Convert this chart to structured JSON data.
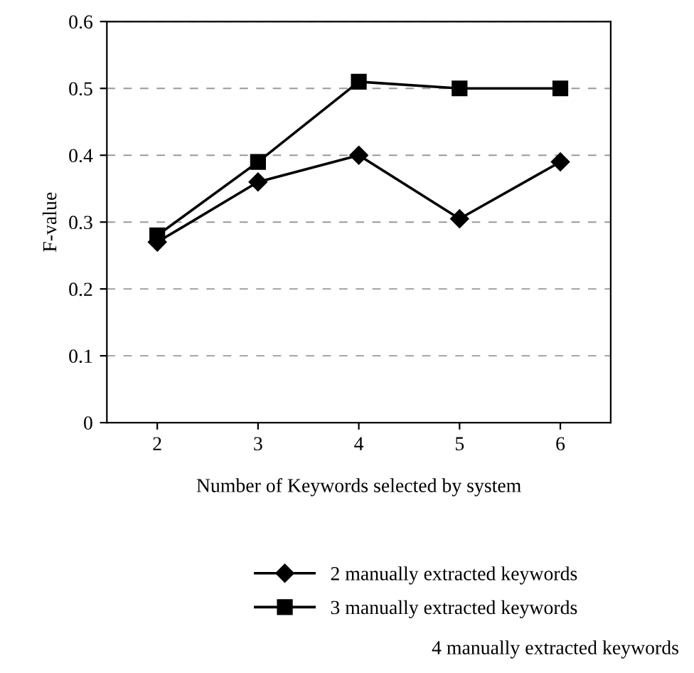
{
  "chart_data": {
    "type": "line",
    "xlabel": "Number of Keywords selected by system",
    "ylabel": "F-value",
    "categories": [
      "2",
      "3",
      "4",
      "5",
      "6"
    ],
    "series": [
      {
        "name": "2 manually extracted keywords",
        "color": "#000000",
        "marker": "diamond",
        "values": [
          0.27,
          0.36,
          0.4,
          0.305,
          0.39
        ]
      },
      {
        "name": "3 manually extracted keywords",
        "color": "#000000",
        "marker": "square",
        "values": [
          0.28,
          0.39,
          0.51,
          0.5,
          0.5
        ]
      }
    ],
    "annotations": [
      "4 manually extracted keywords"
    ],
    "ylim": [
      0,
      0.6
    ],
    "yticks": [
      0,
      0.1,
      0.2,
      0.3,
      0.4,
      0.5,
      0.6
    ],
    "grid": "y",
    "legend": "bottom",
    "line_style": "solid"
  }
}
